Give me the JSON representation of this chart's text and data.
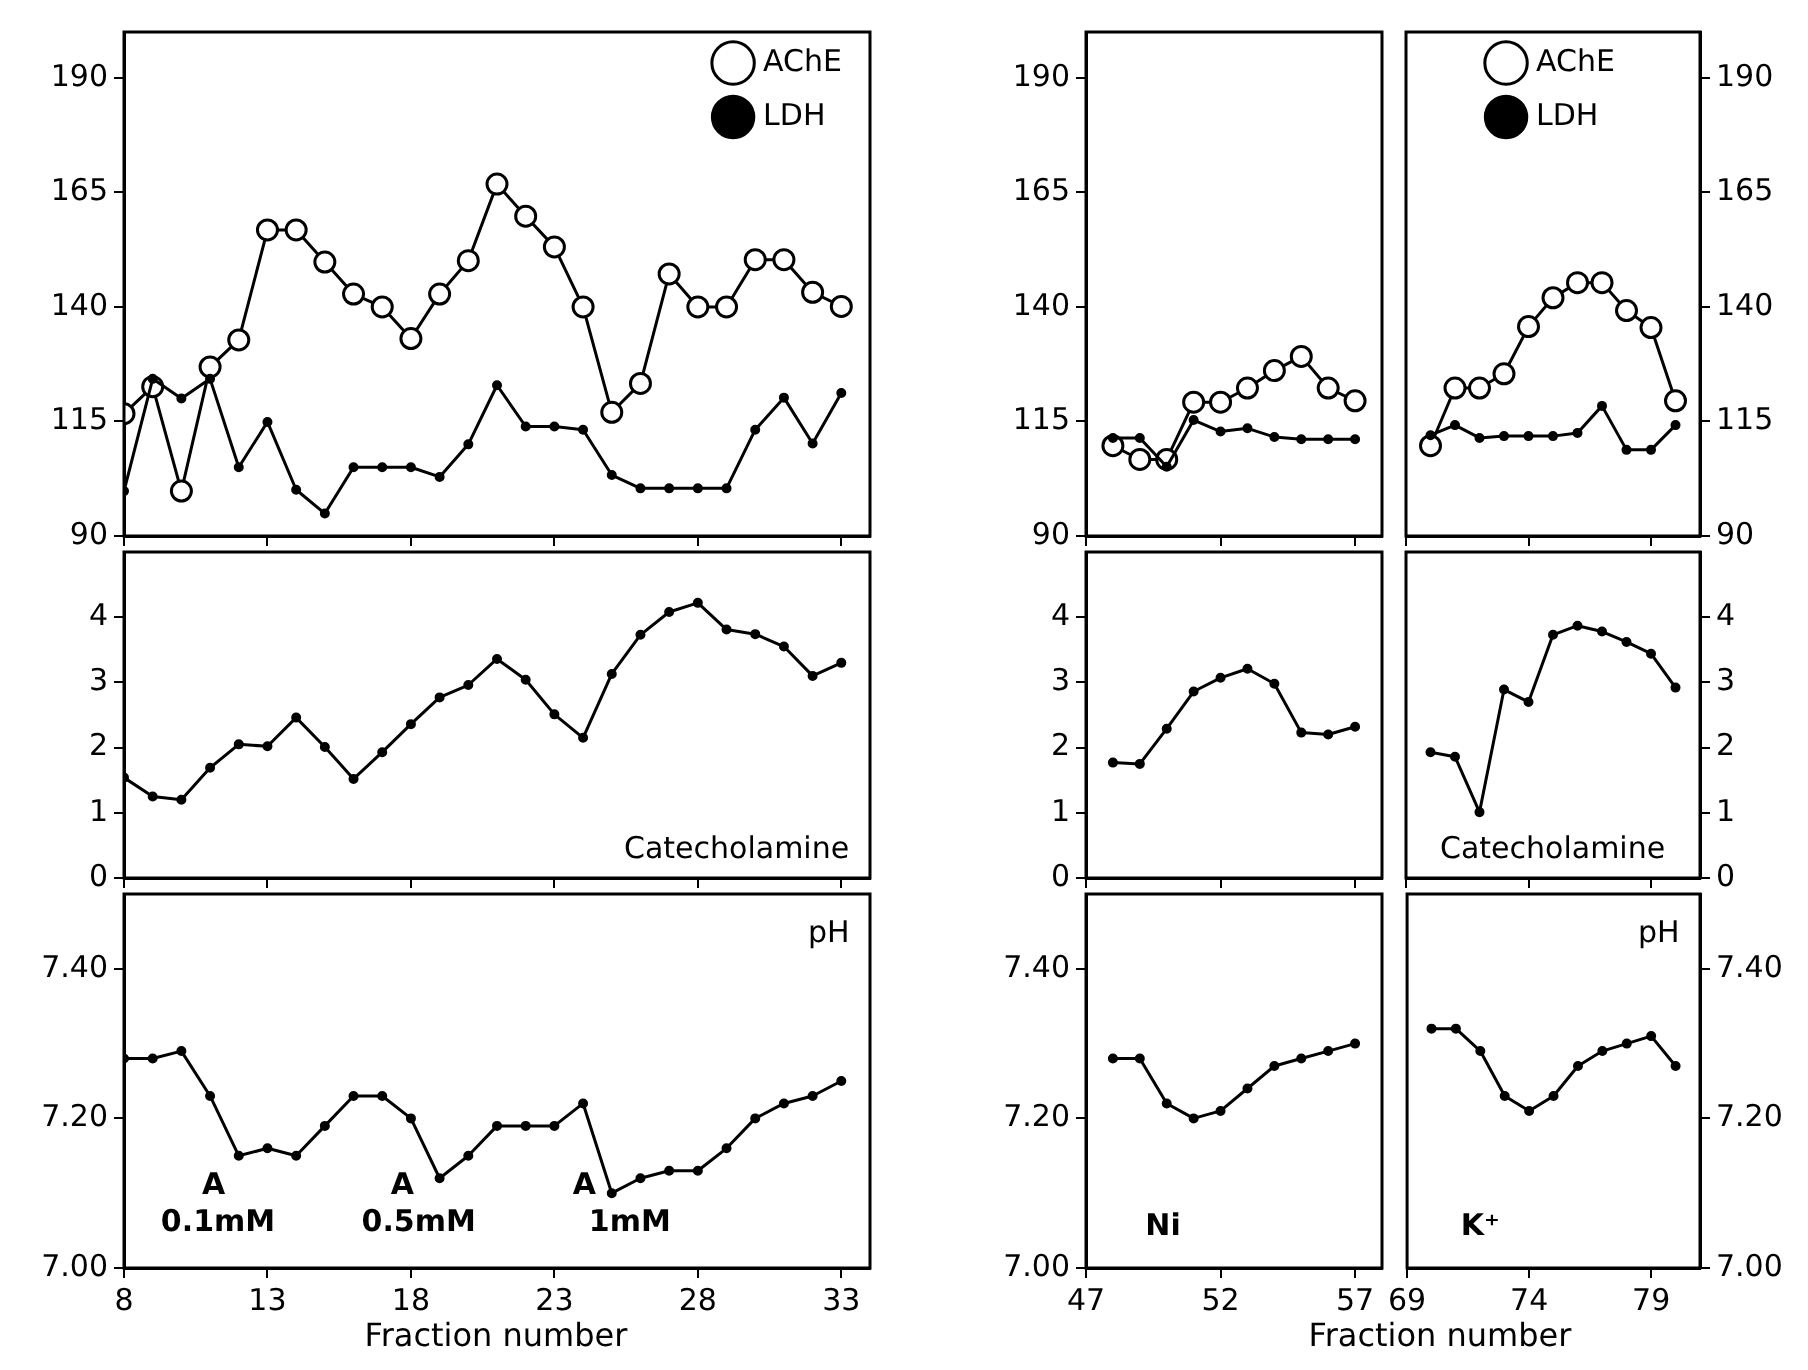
{
  "chart_data": [
    {
      "type": "line",
      "x": [
        8,
        9,
        10,
        11,
        12,
        13,
        14,
        15,
        16,
        17,
        18,
        19,
        20,
        21,
        22,
        23,
        24,
        25,
        26,
        27,
        28,
        29,
        30,
        31,
        32,
        33
      ],
      "xlim": [
        8,
        34
      ],
      "xticks": [
        8,
        13,
        18,
        23,
        28,
        33
      ],
      "ylim": [
        90,
        200
      ],
      "yticks": [
        90,
        115,
        140,
        165,
        190
      ],
      "marker": "circle",
      "legend": "top right",
      "tick_labels": "y",
      "series": [
        {
          "name": "AChE",
          "color": "#000000",
          "values": [
            116.7,
            122.6,
            99.8,
            126.9,
            132.8,
            156.8,
            156.8,
            149.8,
            142.8,
            140,
            133.1,
            142.8,
            150.1,
            166.8,
            159.8,
            153.1,
            140,
            117,
            123.3,
            147.2,
            140,
            140,
            150.3,
            150.3,
            143.2,
            140.1
          ]
        },
        {
          "name": "LDH",
          "color": "#000000",
          "values": [
            99.8,
            124.3,
            120,
            124.3,
            105,
            114.9,
            100.1,
            94.9,
            105,
            105,
            105,
            102.9,
            110,
            122.9,
            113.9,
            113.9,
            113.2,
            103.3,
            100.4,
            100.4,
            100.4,
            100.4,
            113.2,
            120.2,
            110.2,
            121.2
          ]
        }
      ]
    },
    {
      "type": "line",
      "x": [
        48,
        49,
        50,
        51,
        52,
        53,
        54,
        55,
        56,
        57
      ],
      "xlim": [
        47,
        58
      ],
      "xticks": [
        47,
        52,
        57
      ],
      "ylim": [
        90,
        200
      ],
      "yticks": [
        90,
        115,
        140,
        165,
        190
      ],
      "marker": "circle",
      "tick_labels": "y",
      "series": [
        {
          "color": "#000000",
          "values": [
            109.7,
            106.7,
            106.7,
            119.2,
            119.2,
            122.3,
            126.1,
            129.2,
            122.3,
            119.5
          ]
        },
        {
          "color": "#000000",
          "values": [
            111.4,
            111.4,
            105.1,
            115.3,
            112.8,
            113.5,
            111.6,
            111.1,
            111.1,
            111.1
          ]
        }
      ]
    },
    {
      "type": "line",
      "x": [
        70,
        71,
        72,
        73,
        74,
        75,
        76,
        77,
        78,
        79,
        80
      ],
      "xlim": [
        69,
        81
      ],
      "xticks": [
        69,
        74,
        79
      ],
      "y2lim": [
        90,
        200
      ],
      "y2ticks": [
        90,
        115,
        140,
        165,
        190
      ],
      "marker": "circle",
      "legend": "top",
      "tick_labels": "y",
      "series": [
        {
          "name": "AChE",
          "color": "#000000",
          "axis": "y2",
          "values": [
            109.7,
            122.3,
            122.3,
            125.4,
            135.7,
            142,
            145.3,
            145.3,
            139.2,
            135.5,
            119.5
          ]
        },
        {
          "name": "LDH",
          "color": "#000000",
          "axis": "y2",
          "values": [
            112,
            114.2,
            111.4,
            111.8,
            111.8,
            111.8,
            112.5,
            118.4,
            108.8,
            108.8,
            114.2
          ]
        }
      ]
    },
    {
      "type": "line",
      "x": [
        8,
        9,
        10,
        11,
        12,
        13,
        14,
        15,
        16,
        17,
        18,
        19,
        20,
        21,
        22,
        23,
        24,
        25,
        26,
        27,
        28,
        29,
        30,
        31,
        32,
        33
      ],
      "xlim": [
        8,
        34
      ],
      "xticks": [
        8,
        13,
        18,
        23,
        28,
        33
      ],
      "ylim": [
        0,
        5
      ],
      "yticks": [
        0,
        1,
        2,
        3,
        4
      ],
      "marker": "circle",
      "legend": "bottom right",
      "tick_labels": "y",
      "series": [
        {
          "name": "Catecholamine",
          "color": "#000000",
          "values": [
            1.54,
            1.25,
            1.2,
            1.69,
            2.05,
            2.02,
            2.46,
            2.01,
            1.52,
            1.93,
            2.36,
            2.77,
            2.96,
            3.36,
            3.04,
            2.51,
            2.15,
            3.13,
            3.73,
            4.08,
            4.22,
            3.81,
            3.74,
            3.55,
            3.1,
            3.3
          ]
        }
      ]
    },
    {
      "type": "line",
      "x": [
        48,
        49,
        50,
        51,
        52,
        53,
        54,
        55,
        56,
        57
      ],
      "xlim": [
        47,
        58
      ],
      "xticks": [
        47,
        52,
        57
      ],
      "ylim": [
        0,
        5
      ],
      "yticks": [
        0,
        1,
        2,
        3,
        4
      ],
      "marker": "circle",
      "tick_labels": "y",
      "series": [
        {
          "color": "#000000",
          "values": [
            1.77,
            1.75,
            2.29,
            2.86,
            3.07,
            3.21,
            2.98,
            2.23,
            2.2,
            2.32
          ]
        }
      ]
    },
    {
      "type": "line",
      "x": [
        70,
        71,
        72,
        73,
        74,
        75,
        76,
        77,
        78,
        79,
        80
      ],
      "xlim": [
        69,
        81
      ],
      "xticks": [
        69,
        74,
        79
      ],
      "y2lim": [
        0,
        5
      ],
      "y2ticks": [
        0,
        1,
        2,
        3,
        4
      ],
      "marker": "circle",
      "legend": "bottom",
      "tick_labels": "y",
      "series": [
        {
          "name": "Catecholamine",
          "color": "#000000",
          "axis": "y2",
          "values": [
            1.93,
            1.86,
            1.01,
            2.89,
            2.7,
            3.73,
            3.87,
            3.78,
            3.62,
            3.44,
            2.92
          ]
        }
      ]
    },
    {
      "type": "line",
      "x": [
        8,
        9,
        10,
        11,
        12,
        13,
        14,
        15,
        16,
        17,
        18,
        19,
        20,
        21,
        22,
        23,
        24,
        25,
        26,
        27,
        28,
        29,
        30,
        31,
        32,
        33
      ],
      "xlim": [
        8,
        34
      ],
      "xticks": [
        8,
        13,
        18,
        23,
        28,
        33
      ],
      "ylim": [
        7,
        7.5
      ],
      "yticks": [
        {
          "value": 7,
          "label": "7.00"
        },
        {
          "value": 7.2,
          "label": "7.20"
        },
        {
          "value": 7.4,
          "label": "7.40"
        }
      ],
      "marker": "circle",
      "legend": "top right",
      "xlabel": "Fraction number",
      "annotations": [
        "A",
        "0.1mM",
        "A",
        "0.5mM",
        "A",
        "1mM"
      ],
      "series": [
        {
          "name": "pH",
          "color": "#000000",
          "values": [
            7.28,
            7.28,
            7.29,
            7.23,
            7.15,
            7.16,
            7.15,
            7.19,
            7.23,
            7.23,
            7.2,
            7.12,
            7.15,
            7.19,
            7.19,
            7.19,
            7.22,
            7.1,
            7.12,
            7.13,
            7.13,
            7.16,
            7.2,
            7.22,
            7.23,
            7.25
          ]
        }
      ]
    },
    {
      "type": "line",
      "x": [
        48,
        49,
        50,
        51,
        52,
        53,
        54,
        55,
        56,
        57
      ],
      "xlim": [
        47,
        58
      ],
      "xticks": [
        47,
        52,
        57
      ],
      "ylim": [
        7,
        7.5
      ],
      "yticks": [
        {
          "value": 7,
          "label": "7.00"
        },
        {
          "value": 7.2,
          "label": "7.20"
        },
        {
          "value": 7.4,
          "label": "7.40"
        }
      ],
      "marker": "circle",
      "xlabel": "Fraction number",
      "annotations": [
        "Ni"
      ],
      "series": [
        {
          "color": "#000000",
          "values": [
            7.28,
            7.28,
            7.22,
            7.2,
            7.21,
            7.24,
            7.27,
            7.28,
            7.29,
            7.3
          ]
        }
      ]
    },
    {
      "type": "line",
      "x": [
        70,
        71,
        72,
        73,
        74,
        75,
        76,
        77,
        78,
        79,
        80
      ],
      "xlim": [
        69,
        81
      ],
      "xticks": [
        69,
        74,
        79
      ],
      "y2lim": [
        7,
        7.5
      ],
      "y2ticks": [
        {
          "value": 7,
          "label": "7.00"
        },
        {
          "value": 7.2,
          "label": "7.20"
        },
        {
          "value": 7.4,
          "label": "7.40"
        }
      ],
      "marker": "circle",
      "legend": "top right",
      "annotations": [
        "K⁺"
      ],
      "series": [
        {
          "name": "pH",
          "color": "#000000",
          "axis": "y2",
          "values": [
            7.32,
            7.32,
            7.29,
            7.23,
            7.21,
            7.23,
            7.27,
            7.29,
            7.3,
            7.31,
            7.27
          ]
        }
      ]
    }
  ]
}
